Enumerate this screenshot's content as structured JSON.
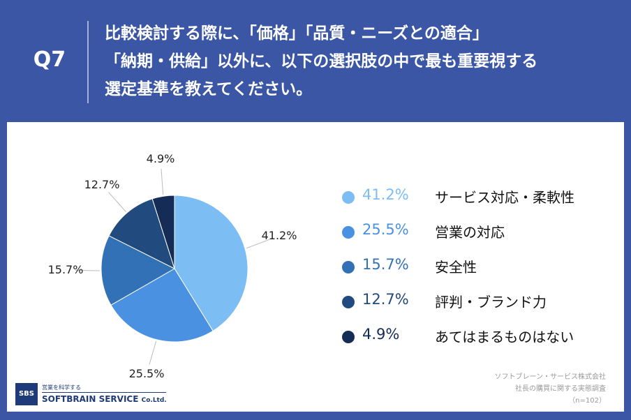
{
  "header": {
    "qnum": "Q7",
    "lines": [
      "比較検討する際に、「価格」「品質・ニーズとの適合」",
      "「納期・供給」以外に、以下の選択肢の中で最も重要視する",
      "選定基準を教えてください。"
    ]
  },
  "chart_data": {
    "type": "pie",
    "unit": "%",
    "slices": [
      {
        "label": "サービス対応・柔軟性",
        "value": 41.2,
        "color": "#7cbdf3"
      },
      {
        "label": "営業の対応",
        "value": 25.5,
        "color": "#4a91e2"
      },
      {
        "label": "安全性",
        "value": 15.7,
        "color": "#3371b7"
      },
      {
        "label": "評判・ブランド力",
        "value": 12.7,
        "color": "#214a7e"
      },
      {
        "label": "あてはまるものはない",
        "value": 4.9,
        "color": "#142c56"
      }
    ],
    "data_labels": [
      "41.2%",
      "25.5%",
      "15.7%",
      "12.7%",
      "4.9%"
    ],
    "legend_values": [
      "41.2%",
      "25.5%",
      "15.7%",
      "12.7%",
      "4.9%"
    ],
    "legend_placement": "right"
  },
  "source": {
    "company": "ソフトブレーン・サービス株式会社",
    "survey": "社長の購買に関する実態調査",
    "n": "（n=102）"
  },
  "logo": {
    "abbr": "SBS",
    "tagline": "営業を科学する",
    "name": "SOFTBRAIN SERVICE",
    "suffix": "Co.Ltd."
  }
}
